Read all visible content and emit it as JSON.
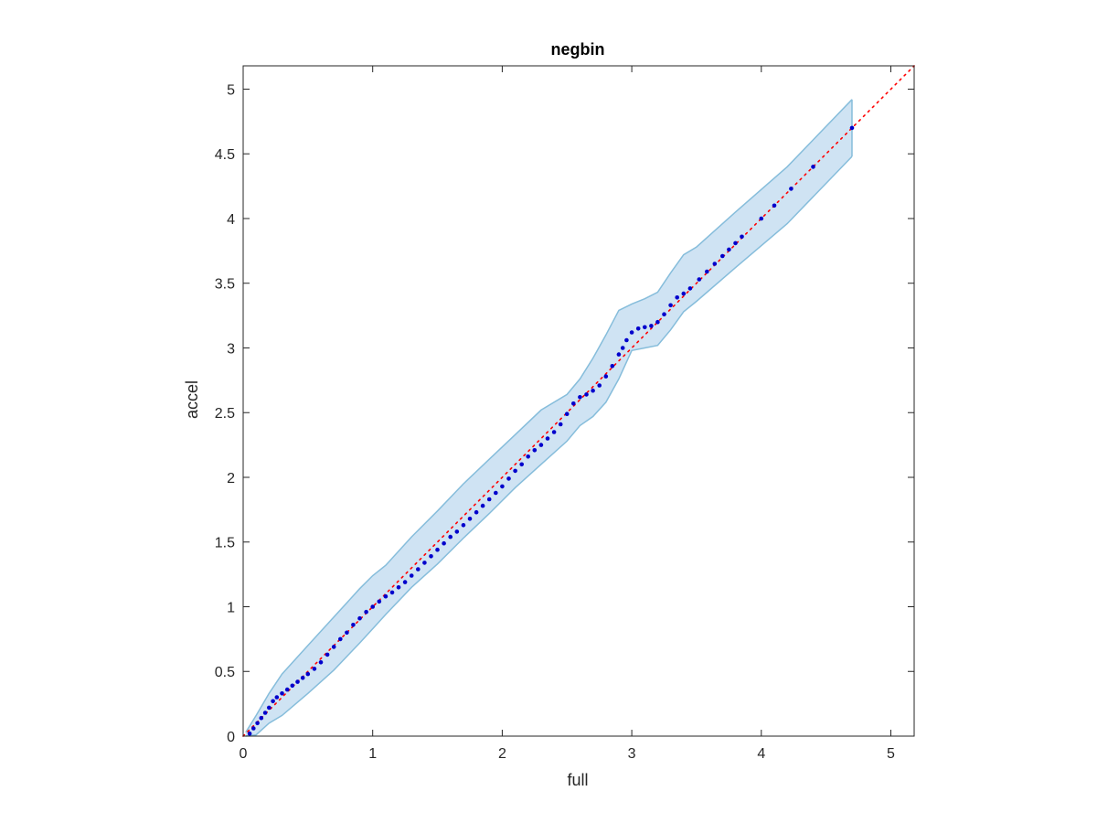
{
  "chart_data": {
    "type": "scatter",
    "title": "negbin",
    "xlabel": "full",
    "ylabel": "accel",
    "xlim": [
      0,
      5.18
    ],
    "ylim": [
      0,
      5.18
    ],
    "xticks": [
      0,
      1,
      2,
      3,
      4,
      5
    ],
    "yticks": [
      0,
      0.5,
      1,
      1.5,
      2,
      2.5,
      3,
      3.5,
      4,
      4.5,
      5
    ],
    "xtick_labels": [
      "0",
      "1",
      "2",
      "3",
      "4",
      "5"
    ],
    "ytick_labels": [
      "0",
      "0.5",
      "1",
      "1.5",
      "2",
      "2.5",
      "3",
      "3.5",
      "4",
      "4.5",
      "5"
    ],
    "grid": false,
    "box": true,
    "reference_line": {
      "style": "dotted",
      "color": "#ff0000",
      "from": [
        0,
        0
      ],
      "to": [
        5.18,
        5.18
      ]
    },
    "band_color": "#cfe3f3",
    "band_edge_color": "#86bddb",
    "point_color": "#0000cc",
    "band": {
      "x": [
        0.02,
        0.1,
        0.2,
        0.3,
        0.5,
        0.7,
        0.9,
        1.0,
        1.1,
        1.3,
        1.5,
        1.7,
        1.9,
        2.1,
        2.3,
        2.5,
        2.6,
        2.7,
        2.8,
        2.9,
        3.0,
        3.1,
        3.2,
        3.3,
        3.4,
        3.5,
        3.8,
        4.2,
        4.7
      ],
      "lower": [
        0.0,
        0.01,
        0.1,
        0.16,
        0.33,
        0.51,
        0.72,
        0.83,
        0.94,
        1.15,
        1.33,
        1.53,
        1.72,
        1.92,
        2.1,
        2.28,
        2.4,
        2.47,
        2.58,
        2.76,
        2.98,
        3.0,
        3.02,
        3.14,
        3.28,
        3.36,
        3.62,
        3.96,
        4.48
      ],
      "upper": [
        0.03,
        0.16,
        0.33,
        0.48,
        0.7,
        0.92,
        1.14,
        1.24,
        1.32,
        1.54,
        1.74,
        1.95,
        2.14,
        2.33,
        2.52,
        2.64,
        2.76,
        2.92,
        3.1,
        3.29,
        3.34,
        3.38,
        3.43,
        3.58,
        3.72,
        3.78,
        4.05,
        4.4,
        4.92
      ]
    },
    "series": [
      {
        "x": [
          0.05,
          0.08,
          0.11,
          0.14,
          0.17,
          0.2,
          0.23,
          0.26,
          0.3,
          0.34,
          0.38,
          0.42,
          0.46,
          0.5,
          0.55,
          0.6,
          0.65,
          0.7,
          0.75,
          0.8,
          0.85,
          0.9,
          0.95,
          1.0,
          1.05,
          1.1,
          1.15,
          1.2,
          1.25,
          1.3,
          1.35,
          1.4,
          1.45,
          1.5,
          1.55,
          1.6,
          1.65,
          1.7,
          1.75,
          1.8,
          1.85,
          1.9,
          1.95,
          2.0,
          2.05,
          2.1,
          2.15,
          2.2,
          2.25,
          2.3,
          2.35,
          2.4,
          2.45,
          2.5,
          2.55,
          2.6,
          2.65,
          2.7,
          2.75,
          2.8,
          2.85,
          2.9,
          2.93,
          2.96,
          3.0,
          3.05,
          3.1,
          3.15,
          3.2,
          3.25,
          3.3,
          3.35,
          3.4,
          3.45,
          3.52,
          3.58,
          3.64,
          3.7,
          3.75,
          3.8,
          3.85,
          4.0,
          4.1,
          4.23,
          4.4,
          4.7
        ],
        "y": [
          0.02,
          0.06,
          0.1,
          0.14,
          0.18,
          0.22,
          0.27,
          0.3,
          0.33,
          0.36,
          0.39,
          0.42,
          0.45,
          0.48,
          0.52,
          0.57,
          0.63,
          0.69,
          0.75,
          0.8,
          0.86,
          0.91,
          0.96,
          1.0,
          1.04,
          1.08,
          1.11,
          1.15,
          1.19,
          1.24,
          1.29,
          1.34,
          1.39,
          1.44,
          1.49,
          1.54,
          1.58,
          1.63,
          1.68,
          1.73,
          1.78,
          1.83,
          1.88,
          1.93,
          1.99,
          2.05,
          2.1,
          2.16,
          2.21,
          2.25,
          2.3,
          2.35,
          2.41,
          2.49,
          2.57,
          2.62,
          2.64,
          2.67,
          2.71,
          2.78,
          2.86,
          2.95,
          3.0,
          3.06,
          3.12,
          3.15,
          3.16,
          3.17,
          3.2,
          3.26,
          3.33,
          3.39,
          3.42,
          3.46,
          3.53,
          3.59,
          3.65,
          3.71,
          3.76,
          3.81,
          3.86,
          4.0,
          4.1,
          4.23,
          4.4,
          4.7
        ]
      }
    ]
  }
}
